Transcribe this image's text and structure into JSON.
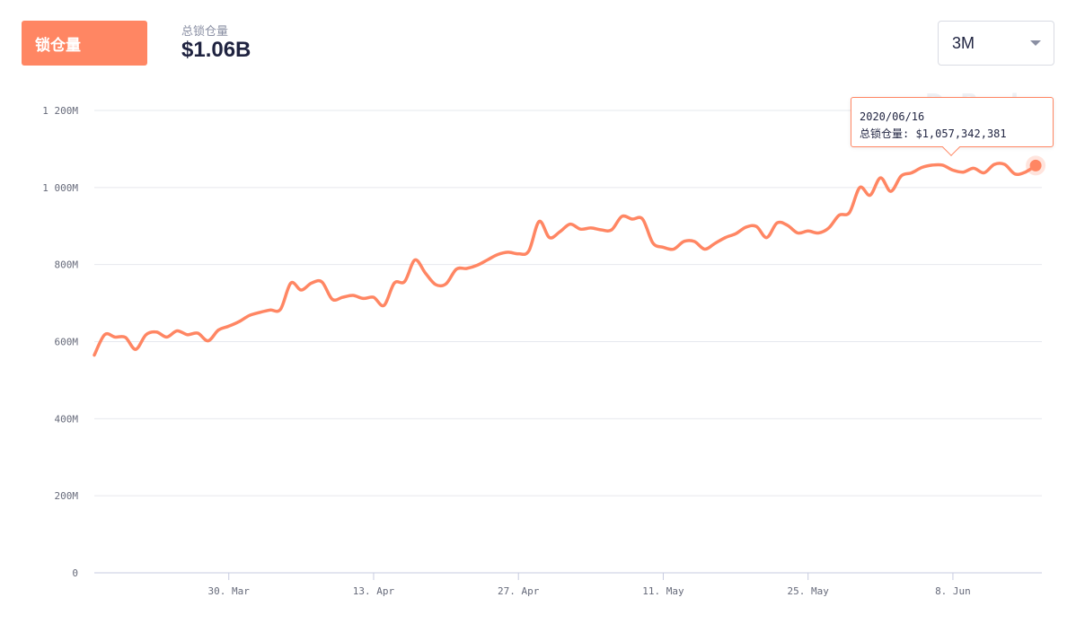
{
  "header": {
    "tab_label": "锁仓量",
    "stat_label": "总锁仓量",
    "stat_value": "$1.06B",
    "range_value": "3M"
  },
  "tooltip": {
    "date": "2020/06/16",
    "label": "总锁仓量",
    "value": "$1,057,342,381"
  },
  "watermark": "DeBank",
  "colors": {
    "line": "#ff8663",
    "grid": "#e6e8ee",
    "axis": "#c7cbe0"
  },
  "chart_data": {
    "type": "line",
    "x_tick_labels": [
      "30. Mar",
      "13. Apr",
      "27. Apr",
      "11. May",
      "25. May",
      "8. Jun"
    ],
    "y_tick_labels": [
      "0",
      "200M",
      "400M",
      "600M",
      "800M",
      "1 000M",
      "1 200M"
    ],
    "ylim": [
      0,
      1200
    ],
    "y_unit": "M",
    "grid": true,
    "x_start": "2020-03-17",
    "x": [
      "2020-03-17",
      "2020-03-18",
      "2020-03-19",
      "2020-03-20",
      "2020-03-21",
      "2020-03-22",
      "2020-03-23",
      "2020-03-24",
      "2020-03-25",
      "2020-03-26",
      "2020-03-27",
      "2020-03-28",
      "2020-03-29",
      "2020-03-30",
      "2020-03-31",
      "2020-04-01",
      "2020-04-02",
      "2020-04-03",
      "2020-04-04",
      "2020-04-05",
      "2020-04-06",
      "2020-04-07",
      "2020-04-08",
      "2020-04-09",
      "2020-04-10",
      "2020-04-11",
      "2020-04-12",
      "2020-04-13",
      "2020-04-14",
      "2020-04-15",
      "2020-04-16",
      "2020-04-17",
      "2020-04-18",
      "2020-04-19",
      "2020-04-20",
      "2020-04-21",
      "2020-04-22",
      "2020-04-23",
      "2020-04-24",
      "2020-04-25",
      "2020-04-26",
      "2020-04-27",
      "2020-04-28",
      "2020-04-29",
      "2020-04-30",
      "2020-05-01",
      "2020-05-02",
      "2020-05-03",
      "2020-05-04",
      "2020-05-05",
      "2020-05-06",
      "2020-05-07",
      "2020-05-08",
      "2020-05-09",
      "2020-05-10",
      "2020-05-11",
      "2020-05-12",
      "2020-05-13",
      "2020-05-14",
      "2020-05-15",
      "2020-05-16",
      "2020-05-17",
      "2020-05-18",
      "2020-05-19",
      "2020-05-20",
      "2020-05-21",
      "2020-05-22",
      "2020-05-23",
      "2020-05-24",
      "2020-05-25",
      "2020-05-26",
      "2020-05-27",
      "2020-05-28",
      "2020-05-29",
      "2020-05-30",
      "2020-05-31",
      "2020-06-01",
      "2020-06-02",
      "2020-06-03",
      "2020-06-04",
      "2020-06-05",
      "2020-06-06",
      "2020-06-07",
      "2020-06-08",
      "2020-06-09",
      "2020-06-10",
      "2020-06-11",
      "2020-06-12",
      "2020-06-13",
      "2020-06-14",
      "2020-06-15",
      "2020-06-16"
    ],
    "values": [
      565,
      618,
      612,
      611,
      580,
      618,
      625,
      612,
      628,
      618,
      622,
      602,
      630,
      640,
      652,
      668,
      676,
      682,
      684,
      752,
      734,
      752,
      755,
      710,
      715,
      720,
      712,
      715,
      694,
      752,
      756,
      812,
      778,
      748,
      750,
      788,
      790,
      798,
      812,
      826,
      832,
      828,
      835,
      912,
      870,
      885,
      905,
      892,
      895,
      890,
      890,
      925,
      918,
      918,
      856,
      845,
      840,
      860,
      860,
      840,
      855,
      870,
      880,
      897,
      899,
      870,
      908,
      902,
      882,
      887,
      882,
      895,
      928,
      935,
      1000,
      980,
      1025,
      990,
      1030,
      1038,
      1052,
      1058,
      1058,
      1045,
      1040,
      1050,
      1038,
      1060,
      1060,
      1035,
      1040,
      1057
    ]
  }
}
